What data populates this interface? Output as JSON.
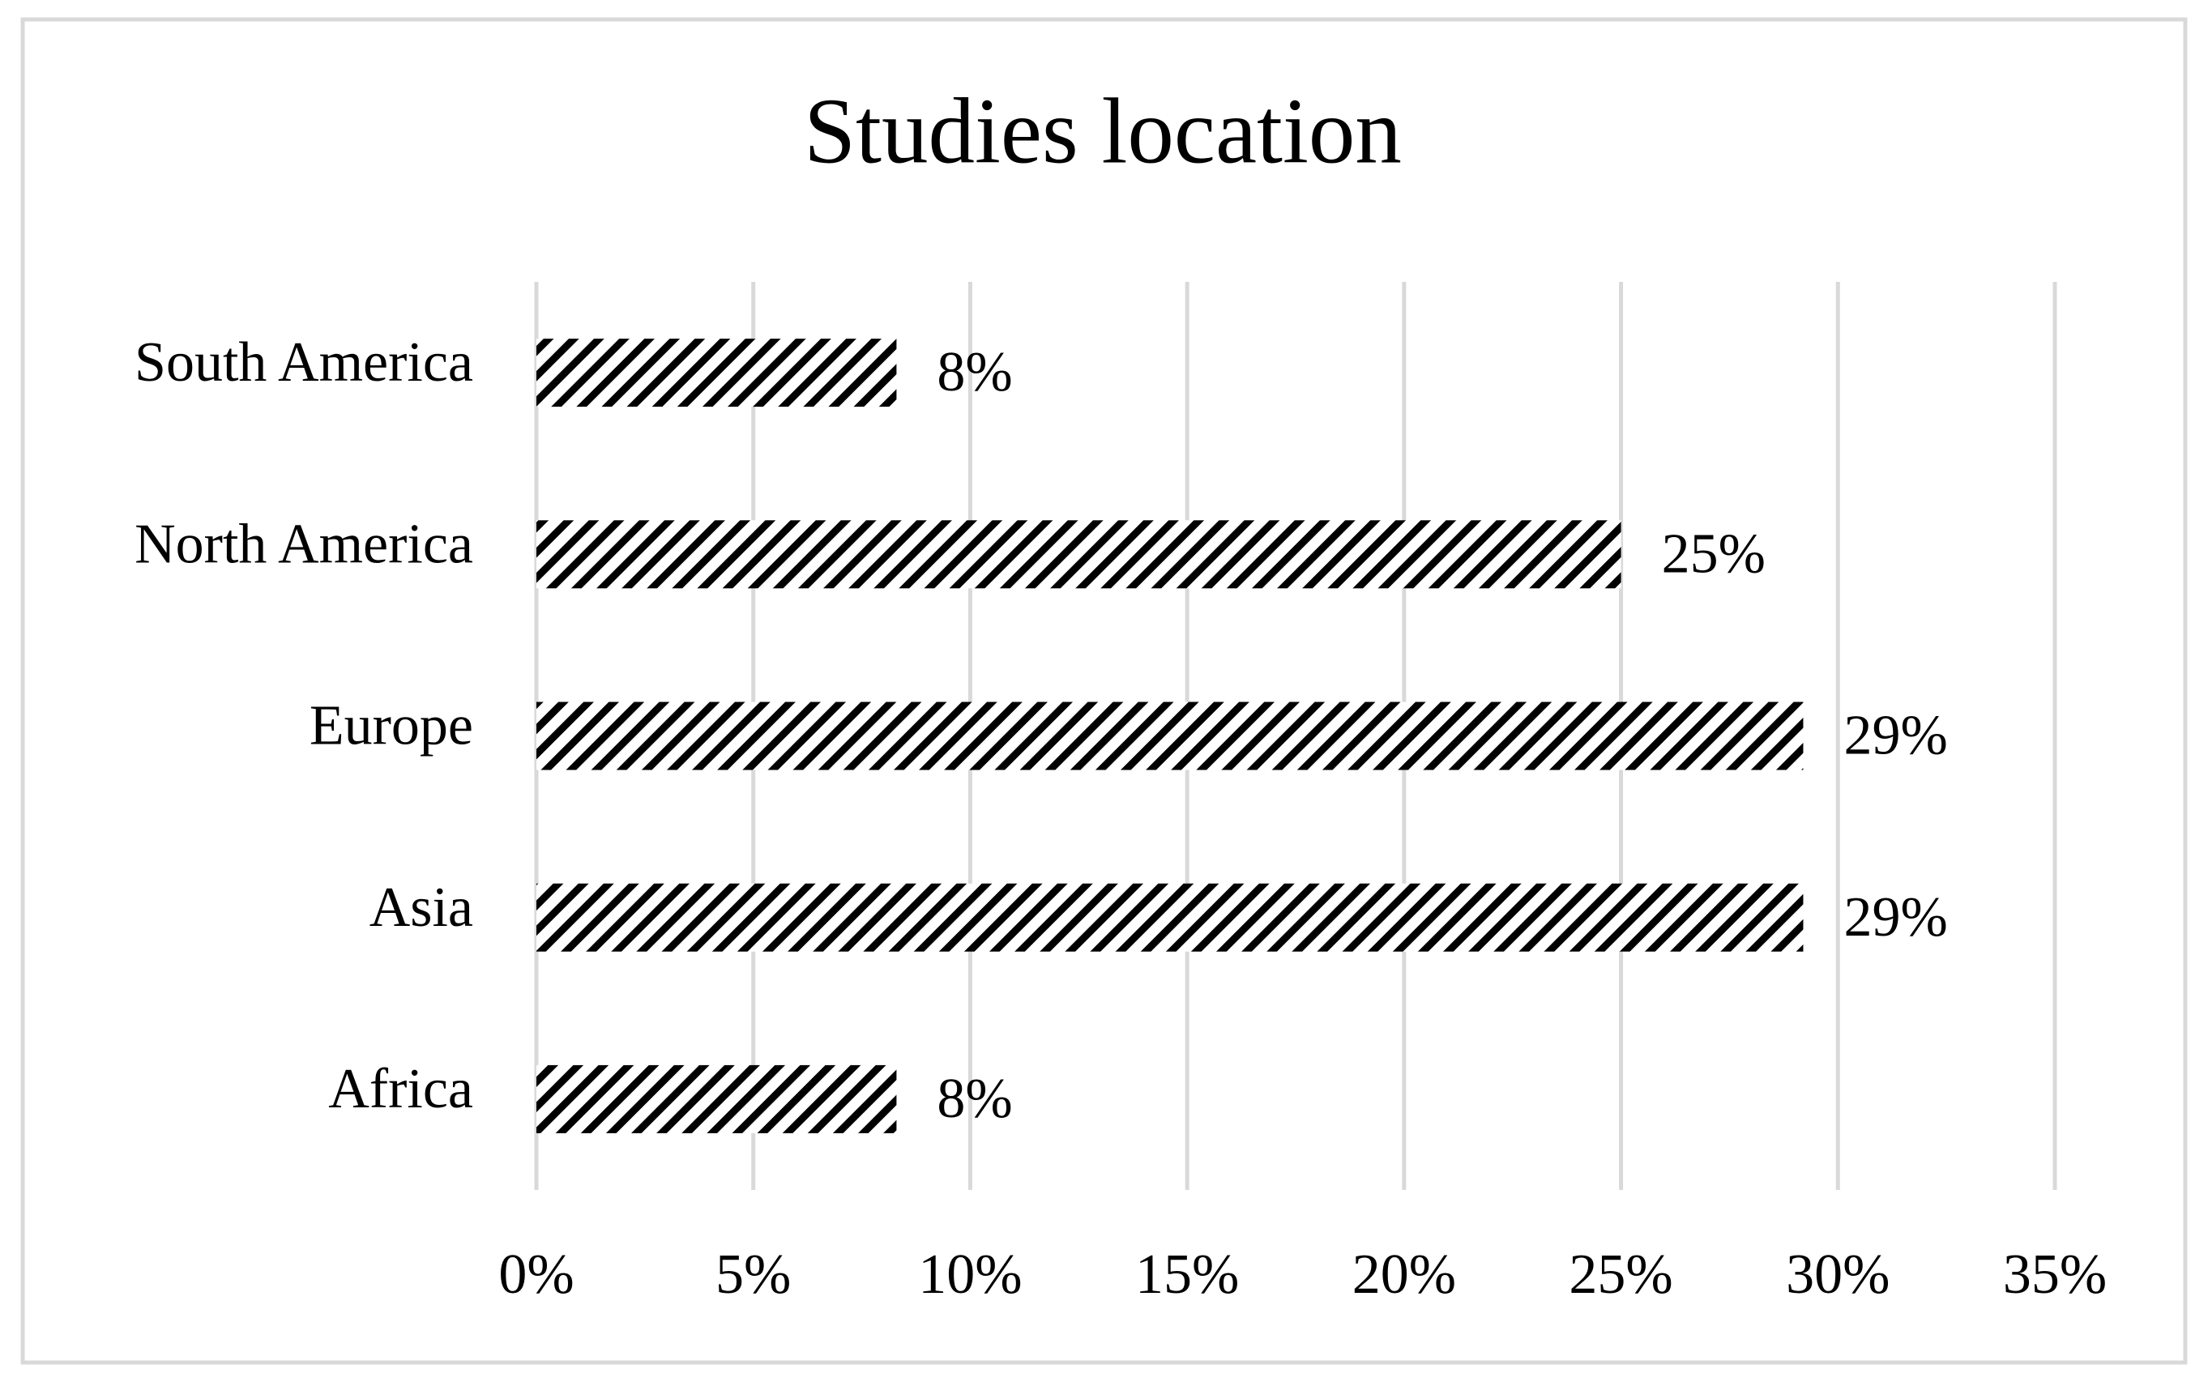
{
  "chart_data": {
    "type": "bar",
    "orientation": "horizontal",
    "title": "Studies location",
    "categories": [
      "Africa",
      "Asia",
      "Europe",
      "North America",
      "South America"
    ],
    "values": [
      8.3,
      29.2,
      29.2,
      25,
      8.3
    ],
    "value_labels": [
      "8%",
      "29%",
      "29%",
      "25%",
      "8%"
    ],
    "color": "#000000",
    "xlim": [
      0,
      35
    ],
    "xticks": [
      {
        "value": 0,
        "label": "0%"
      },
      {
        "value": 5,
        "label": "5%"
      },
      {
        "value": 10,
        "label": "10%"
      },
      {
        "value": 15,
        "label": "15%"
      },
      {
        "value": 20,
        "label": "20%"
      },
      {
        "value": 25,
        "label": "25%"
      },
      {
        "value": 30,
        "label": "30%"
      },
      {
        "value": 35,
        "label": "35%"
      }
    ],
    "grid": true
  }
}
